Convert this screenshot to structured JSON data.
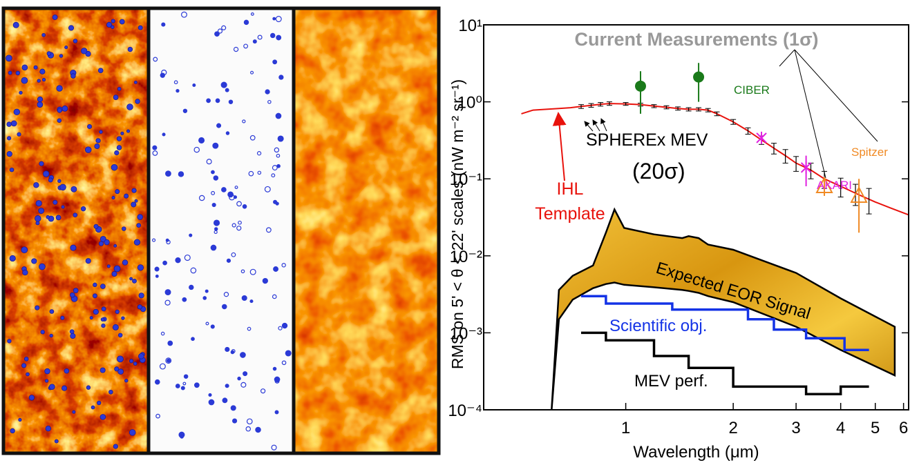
{
  "chart_data": {
    "type": "line",
    "xscale": "log",
    "yscale": "log",
    "xlim": [
      0.4,
      6.2
    ],
    "ylim": [
      0.0001,
      10
    ],
    "xticks": [
      1,
      2,
      3,
      4,
      5,
      6
    ],
    "yticks": [
      {
        "value": 0.0001,
        "label": "10⁻⁴"
      },
      {
        "value": 0.001,
        "label": "10⁻³"
      },
      {
        "value": 0.01,
        "label": "10⁻²"
      },
      {
        "value": 0.1,
        "label": "10⁻¹"
      },
      {
        "value": 1,
        "label": "10⁰"
      },
      {
        "value": 10,
        "label": "10¹"
      }
    ],
    "x_label": "Wavelength (μm)",
    "y_label": "RMS on 5' < θ < 22' scales (nW m⁻² sr⁻¹)",
    "annotations": {
      "measurements": "Current Measurements (1σ)",
      "ciber": "CIBER",
      "akari": "AKARI",
      "spitzer": "Spitzer",
      "spherex": "SPHEREx MEV",
      "sigma": "(20σ)",
      "ihl": "IHL",
      "template": "Template",
      "eor": "Expected EOR Signal",
      "scientific": "Scientific obj.",
      "mev": "MEV perf."
    },
    "series": [
      {
        "kind": "area",
        "color": "#e0a417",
        "x": [
          0.62,
          0.65,
          0.71,
          0.81,
          0.88,
          0.93,
          0.99,
          1.2,
          1.44,
          1.5,
          1.6,
          1.7,
          2.0,
          3.0,
          4.0,
          5.67
        ],
        "high": [
          0.0001,
          0.0036,
          0.0055,
          0.0075,
          0.02,
          0.04,
          0.023,
          0.019,
          0.017,
          0.018,
          0.017,
          0.014,
          0.012,
          0.006,
          0.0028,
          0.0012
        ],
        "low": [
          0.0001,
          0.0015,
          0.0027,
          0.0038,
          0.0043,
          0.0045,
          0.0042,
          0.0039,
          0.0036,
          0.0035,
          0.0033,
          0.003,
          0.0025,
          0.0012,
          0.0006,
          0.00028
        ]
      },
      {
        "kind": "line",
        "color": "#1433e6",
        "x": [
          0.75,
          0.88,
          0.88,
          1.35,
          1.35,
          2.2,
          2.2,
          2.6,
          2.6,
          3.2,
          3.2,
          4.1,
          4.1,
          4.8
        ],
        "values": [
          0.003,
          0.003,
          0.0024,
          0.0024,
          0.002,
          0.002,
          0.0015,
          0.0015,
          0.0011,
          0.0011,
          0.00085,
          0.00085,
          0.0006,
          0.0006
        ]
      },
      {
        "kind": "line",
        "color": "#000000",
        "x": [
          0.75,
          0.88,
          0.88,
          1.2,
          1.2,
          1.5,
          1.5,
          2.0,
          2.0,
          2.7,
          2.7,
          3.2,
          3.2,
          4.0,
          4.0,
          4.8
        ],
        "values": [
          0.001,
          0.001,
          0.0008,
          0.0008,
          0.0005,
          0.0005,
          0.00035,
          0.00035,
          0.0002,
          0.0002,
          0.0002,
          0.0002,
          0.00016,
          0.00016,
          0.0002,
          0.0002
        ]
      },
      {
        "kind": "line",
        "color": "#e8120c",
        "x": [
          0.51,
          0.55,
          0.6,
          0.65,
          0.7,
          0.75,
          0.8,
          0.85,
          0.9,
          1.0,
          1.1,
          1.2,
          1.3,
          1.4,
          1.5,
          1.6,
          1.7,
          1.8,
          2.0,
          2.2,
          2.4,
          2.6,
          2.8,
          3.0,
          3.3,
          3.6,
          4.0,
          4.5,
          5.0,
          5.5,
          6.2
        ],
        "values": [
          0.7,
          0.78,
          0.8,
          0.82,
          0.84,
          0.87,
          0.9,
          0.93,
          0.95,
          0.94,
          0.92,
          0.88,
          0.85,
          0.82,
          0.8,
          0.8,
          0.78,
          0.7,
          0.55,
          0.42,
          0.32,
          0.25,
          0.2,
          0.16,
          0.13,
          0.1,
          0.08,
          0.062,
          0.05,
          0.042,
          0.034
        ]
      },
      {
        "kind": "errorbar",
        "marker": "none",
        "color": "#000000",
        "x": [
          0.75,
          0.8,
          0.85,
          0.9,
          1.0,
          1.1,
          1.2,
          1.3,
          1.4,
          1.5,
          1.6,
          1.7,
          1.8,
          2.0,
          2.2,
          2.4,
          2.6,
          2.8,
          3.0,
          3.3,
          3.6,
          4.0,
          4.4,
          4.8
        ],
        "values": [
          0.87,
          0.9,
          0.93,
          0.95,
          0.94,
          0.92,
          0.88,
          0.85,
          0.82,
          0.8,
          0.8,
          0.78,
          0.7,
          0.55,
          0.42,
          0.32,
          0.25,
          0.2,
          0.16,
          0.13,
          0.1,
          0.08,
          0.065,
          0.055
        ],
        "errors": [
          0.05,
          0.05,
          0.05,
          0.05,
          0.04,
          0.04,
          0.04,
          0.04,
          0.04,
          0.04,
          0.04,
          0.04,
          0.04,
          0.04,
          0.04,
          0.04,
          0.04,
          0.04,
          0.035,
          0.03,
          0.025,
          0.022,
          0.02,
          0.02
        ]
      },
      {
        "kind": "errorbar",
        "marker": "circle",
        "color": "#1a7a1a",
        "x": [
          1.1,
          1.6
        ],
        "values": [
          1.6,
          2.1
        ],
        "errors": [
          0.9,
          1.1
        ]
      },
      {
        "kind": "errorbar",
        "marker": "x",
        "color": "#e020e0",
        "x": [
          2.4,
          3.2
        ],
        "values": [
          0.34,
          0.14
        ],
        "errors": [
          0.04,
          0.06
        ]
      },
      {
        "kind": "errorbar",
        "marker": "triangle",
        "color": "#f08a24",
        "x": [
          3.6,
          4.5
        ],
        "values": [
          0.08,
          0.06
        ],
        "errors": [
          0.02,
          0.04
        ]
      }
    ]
  }
}
